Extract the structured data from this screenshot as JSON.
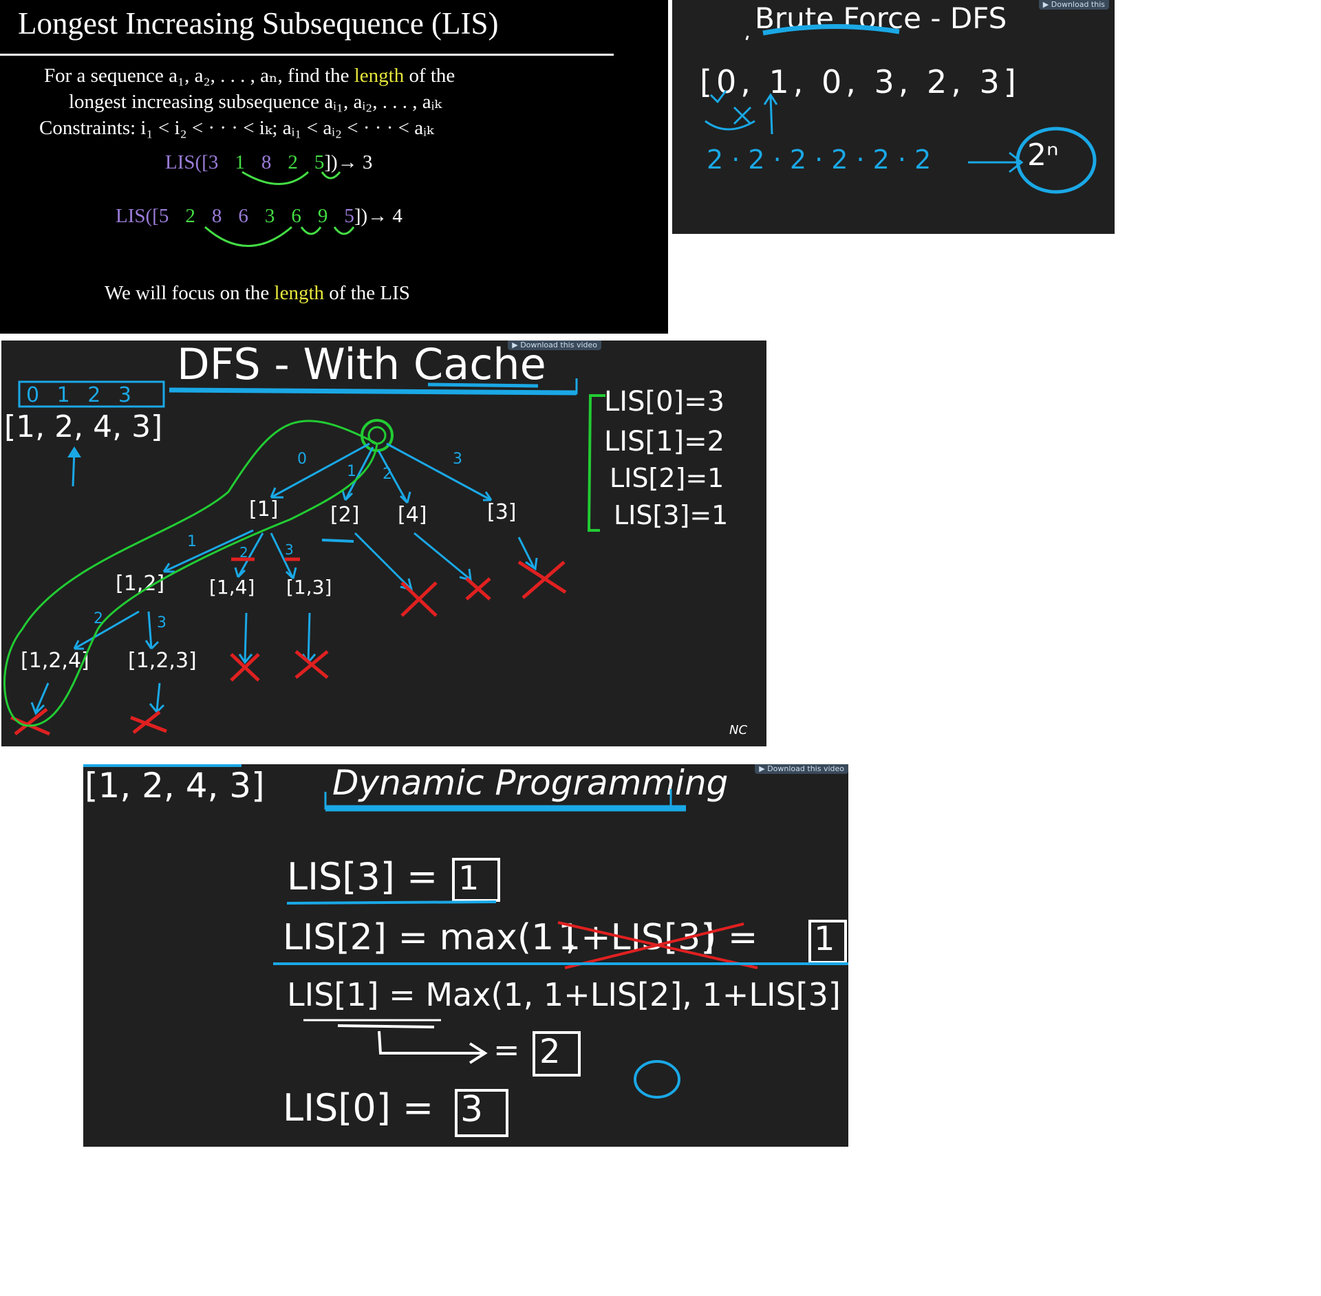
{
  "lis_slide": {
    "title": "Longest Increasing Subsequence (LIS)",
    "line1_a": "For a sequence a₁, a₂, . . . , aₙ, find the",
    "line1_b": "length",
    "line1_c": "of the",
    "line2": "longest increasing subsequence aᵢ₁, aᵢ₂, . . . , aᵢₖ",
    "line3": "Constraints: i₁ < i₂ < · · · < iₖ; aᵢ₁ < aᵢ₂ < · · · < aᵢₖ",
    "example1": {
      "prefix": "LIS([",
      "values": [
        "3",
        "1",
        "8",
        "2",
        "5"
      ],
      "highlight": [
        false,
        true,
        false,
        true,
        true
      ],
      "suffix": "])→ 3"
    },
    "example2": {
      "prefix": "LIS([",
      "values": [
        "5",
        "2",
        "8",
        "6",
        "3",
        "6",
        "9",
        "5"
      ],
      "highlight": [
        false,
        true,
        false,
        false,
        true,
        true,
        true,
        false
      ],
      "suffix": "])→ 4"
    },
    "focus_a": "We will focus on the",
    "focus_b": "length",
    "focus_c": "of the LIS"
  },
  "brute_force": {
    "title": "Brute Force - DFS",
    "array": "[0, 1, 0, 3, 2, 3]",
    "product": "2 · 2 · 2 · 2 · 2 · 2",
    "result": "2ⁿ",
    "banner": "▶ Download this"
  },
  "dfs_cache": {
    "title": "DFS - With Cache",
    "indices": "0   1   2   3",
    "array": "[1, 2, 4, 3]",
    "edge_labels": [
      "0",
      "1",
      "2",
      "3"
    ],
    "level1": [
      "[1]",
      "[2]",
      "[4]",
      "[3]"
    ],
    "level2": [
      "[1,2]",
      "[1,4]",
      "[1,3]"
    ],
    "level3": [
      "[1,2,4]",
      "[1,2,3]"
    ],
    "sub_labels": [
      "1",
      "2",
      "3",
      "2",
      "3"
    ],
    "results": [
      "LIS[0]=3",
      "LIS[1]=2",
      "LIS[2]=1",
      "LIS[3]=1"
    ],
    "banner": "▶ Download this video",
    "watermark": "NC"
  },
  "dp": {
    "title": "Dynamic Programming",
    "array": "[1, 2, 4, 3]",
    "row3_label": "LIS[3] =",
    "row3_value": "1",
    "row2_label": "LIS[2] = max(1 ,",
    "row2_crossed": "1+LIS[3]",
    "row2_close": ") =",
    "row2_value": "1",
    "row1_label": "LIS[1] = Max(1, 1+LIS[2], 1+LIS[3]",
    "row1_eq": "=",
    "row1_value": "2",
    "row0_label": "LIS[0] =",
    "row0_value": "3",
    "banner": "▶ Download this video"
  },
  "colors": {
    "blue": "#1aa8e6",
    "red": "#e02020",
    "green": "#22cc33",
    "yellow": "#e6e63c",
    "purple": "#9a7cd8"
  }
}
